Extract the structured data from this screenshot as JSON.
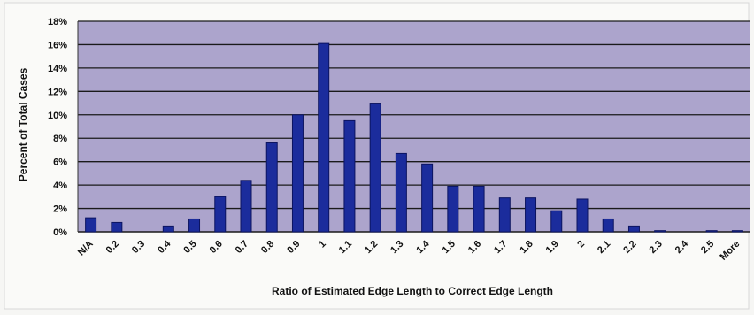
{
  "chart_data": {
    "type": "bar",
    "title": "",
    "xlabel": "Ratio of Estimated Edge Length to Correct Edge Length",
    "ylabel": "Percent of Total Cases",
    "ylim": [
      0,
      18
    ],
    "y_ticks": [
      "0%",
      "2%",
      "4%",
      "6%",
      "8%",
      "10%",
      "12%",
      "14%",
      "16%",
      "18%"
    ],
    "y_tick_values": [
      0,
      2,
      4,
      6,
      8,
      10,
      12,
      14,
      16,
      18
    ],
    "grid": true,
    "legend": "none",
    "categories": [
      "N/A",
      "0.2",
      "0.3",
      "0.4",
      "0.5",
      "0.6",
      "0.7",
      "0.8",
      "0.9",
      "1",
      "1.1",
      "1.2",
      "1.3",
      "1.4",
      "1.5",
      "1.6",
      "1.7",
      "1.8",
      "1.9",
      "2",
      "2.1",
      "2.2",
      "2.3",
      "2.4",
      "2.5",
      "More"
    ],
    "values": [
      1.2,
      0.8,
      0,
      0.5,
      1.1,
      3.0,
      4.4,
      7.6,
      10.0,
      16.1,
      9.5,
      11.0,
      6.7,
      5.8,
      3.9,
      3.9,
      2.9,
      2.9,
      1.8,
      2.8,
      1.1,
      0.5,
      0.1,
      0,
      0.1,
      0.1
    ],
    "colors": {
      "plot_background": "#aca4cc",
      "bar_fill": "#1b2c9c",
      "bar_stroke": "#0c1460",
      "gridline": "#1a1a1a",
      "axis": "#333333"
    }
  }
}
